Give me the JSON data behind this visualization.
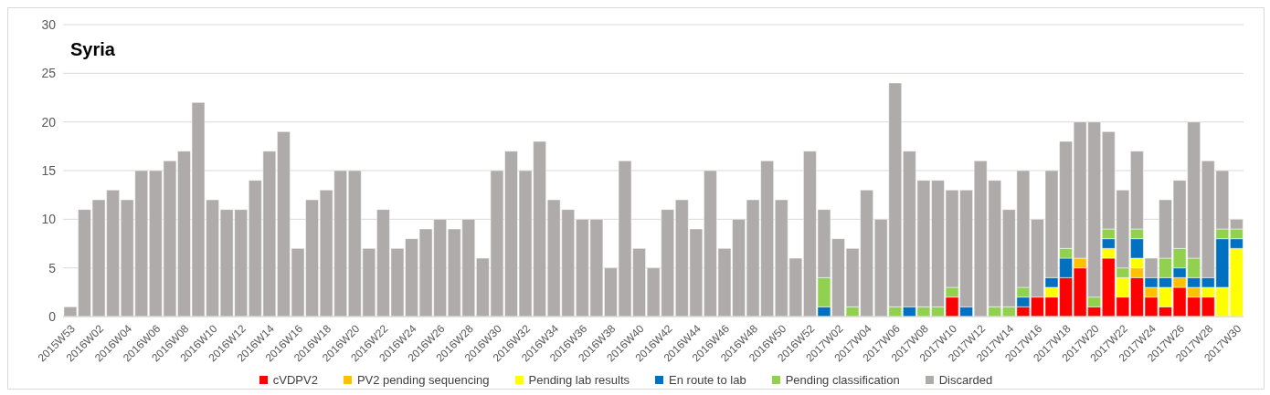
{
  "chart_data": {
    "type": "bar",
    "title": "Syria",
    "stacked": true,
    "grid": "y",
    "legend": "bottom",
    "ylim": [
      0,
      30
    ],
    "yticks": [
      0,
      5,
      10,
      15,
      20,
      25,
      30
    ],
    "categories": [
      "2015W53",
      null,
      "2016W02",
      null,
      "2016W04",
      null,
      "2016W06",
      null,
      "2016W08",
      null,
      "2016W10",
      null,
      "2016W12",
      null,
      "2016W14",
      null,
      "2016W16",
      null,
      "2016W18",
      null,
      "2016W20",
      null,
      "2016W22",
      null,
      "2016W24",
      null,
      "2016W26",
      null,
      "2016W28",
      null,
      "2016W30",
      null,
      "2016W32",
      null,
      "2016W34",
      null,
      "2016W36",
      null,
      "2016W38",
      null,
      "2016W40",
      null,
      "2016W42",
      null,
      "2016W44",
      null,
      "2016W46",
      null,
      "2016W48",
      null,
      "2016W50",
      null,
      "2016W52",
      null,
      "2017W02",
      null,
      "2017W04",
      null,
      "2017W06",
      null,
      "2017W08",
      null,
      "2017W10",
      null,
      "2017W12",
      null,
      "2017W14",
      null,
      "2017W16",
      null,
      "2017W18",
      null,
      "2017W20",
      null,
      "2017W22",
      null,
      "2017W24",
      null,
      "2017W26",
      null,
      "2017W28",
      null,
      "2017W30"
    ],
    "series": [
      {
        "name": "cVDPV2",
        "color": "#ff0000",
        "values": [
          0,
          0,
          0,
          0,
          0,
          0,
          0,
          0,
          0,
          0,
          0,
          0,
          0,
          0,
          0,
          0,
          0,
          0,
          0,
          0,
          0,
          0,
          0,
          0,
          0,
          0,
          0,
          0,
          0,
          0,
          0,
          0,
          0,
          0,
          0,
          0,
          0,
          0,
          0,
          0,
          0,
          0,
          0,
          0,
          0,
          0,
          0,
          0,
          0,
          0,
          0,
          0,
          0,
          0,
          0,
          0,
          0,
          0,
          0,
          0,
          0,
          0,
          2,
          0,
          0,
          0,
          0,
          1,
          2,
          2,
          4,
          5,
          1,
          6,
          2,
          4,
          2,
          1,
          3,
          2,
          2,
          0,
          0
        ]
      },
      {
        "name": "PV2 pending sequencing",
        "color": "#ffc000",
        "values": [
          0,
          0,
          0,
          0,
          0,
          0,
          0,
          0,
          0,
          0,
          0,
          0,
          0,
          0,
          0,
          0,
          0,
          0,
          0,
          0,
          0,
          0,
          0,
          0,
          0,
          0,
          0,
          0,
          0,
          0,
          0,
          0,
          0,
          0,
          0,
          0,
          0,
          0,
          0,
          0,
          0,
          0,
          0,
          0,
          0,
          0,
          0,
          0,
          0,
          0,
          0,
          0,
          0,
          0,
          0,
          0,
          0,
          0,
          0,
          0,
          0,
          0,
          0,
          0,
          0,
          0,
          0,
          0,
          0,
          0,
          0,
          1,
          0,
          0,
          0,
          1,
          1,
          0,
          1,
          1,
          0,
          0,
          0
        ]
      },
      {
        "name": "Pending lab results",
        "color": "#ffff00",
        "values": [
          0,
          0,
          0,
          0,
          0,
          0,
          0,
          0,
          0,
          0,
          0,
          0,
          0,
          0,
          0,
          0,
          0,
          0,
          0,
          0,
          0,
          0,
          0,
          0,
          0,
          0,
          0,
          0,
          0,
          0,
          0,
          0,
          0,
          0,
          0,
          0,
          0,
          0,
          0,
          0,
          0,
          0,
          0,
          0,
          0,
          0,
          0,
          0,
          0,
          0,
          0,
          0,
          0,
          0,
          0,
          0,
          0,
          0,
          0,
          0,
          0,
          0,
          0,
          0,
          0,
          0,
          0,
          0,
          0,
          1,
          0,
          0,
          0,
          1,
          2,
          1,
          0,
          2,
          0,
          0,
          1,
          3,
          7
        ]
      },
      {
        "name": "En route to lab",
        "color": "#0070c0",
        "values": [
          0,
          0,
          0,
          0,
          0,
          0,
          0,
          0,
          0,
          0,
          0,
          0,
          0,
          0,
          0,
          0,
          0,
          0,
          0,
          0,
          0,
          0,
          0,
          0,
          0,
          0,
          0,
          0,
          0,
          0,
          0,
          0,
          0,
          0,
          0,
          0,
          0,
          0,
          0,
          0,
          0,
          0,
          0,
          0,
          0,
          0,
          0,
          0,
          0,
          0,
          0,
          0,
          0,
          1,
          0,
          0,
          0,
          0,
          0,
          1,
          0,
          0,
          0,
          1,
          0,
          0,
          0,
          1,
          0,
          1,
          2,
          0,
          0,
          1,
          0,
          2,
          1,
          1,
          1,
          1,
          1,
          5,
          1
        ]
      },
      {
        "name": "Pending classification",
        "color": "#92d050",
        "values": [
          0,
          0,
          0,
          0,
          0,
          0,
          0,
          0,
          0,
          0,
          0,
          0,
          0,
          0,
          0,
          0,
          0,
          0,
          0,
          0,
          0,
          0,
          0,
          0,
          0,
          0,
          0,
          0,
          0,
          0,
          0,
          0,
          0,
          0,
          0,
          0,
          0,
          0,
          0,
          0,
          0,
          0,
          0,
          0,
          0,
          0,
          0,
          0,
          0,
          0,
          0,
          0,
          0,
          3,
          0,
          1,
          0,
          0,
          1,
          0,
          1,
          1,
          1,
          0,
          0,
          1,
          1,
          1,
          0,
          0,
          1,
          0,
          1,
          1,
          1,
          1,
          0,
          2,
          2,
          2,
          0,
          1,
          1
        ]
      },
      {
        "name": "Discarded",
        "color": "#afabab",
        "values": [
          1,
          11,
          12,
          13,
          12,
          15,
          15,
          16,
          17,
          22,
          12,
          11,
          11,
          14,
          17,
          19,
          7,
          12,
          13,
          15,
          15,
          7,
          11,
          7,
          8,
          9,
          10,
          9,
          10,
          6,
          15,
          17,
          15,
          18,
          12,
          11,
          10,
          10,
          5,
          16,
          7,
          5,
          11,
          12,
          9,
          15,
          7,
          10,
          12,
          16,
          12,
          6,
          17,
          7,
          8,
          6,
          13,
          10,
          23,
          16,
          13,
          13,
          10,
          12,
          16,
          13,
          10,
          12,
          8,
          11,
          11,
          14,
          18,
          10,
          8,
          8,
          2,
          6,
          7,
          14,
          12,
          6,
          1
        ]
      }
    ]
  }
}
